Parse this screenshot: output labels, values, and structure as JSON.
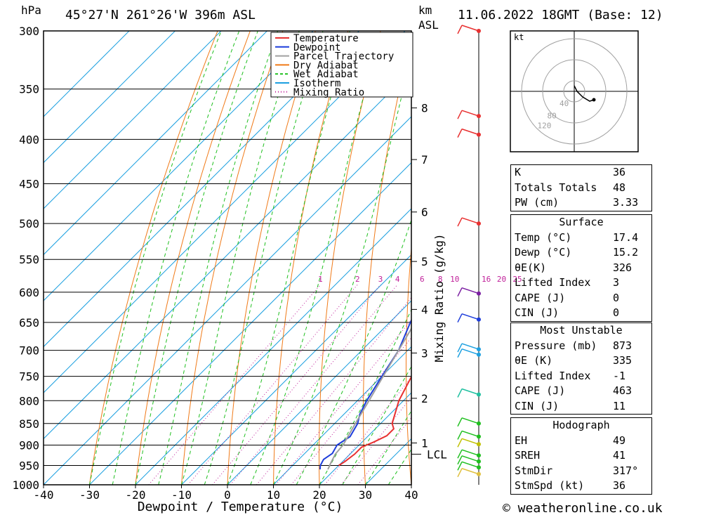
{
  "header": {
    "pressure_unit": "hPa",
    "location": "45°27'N 261°26'W 396m ASL",
    "height_unit": "km",
    "height_ref": "ASL",
    "datetime": "11.06.2022 18GMT (Base: 12)"
  },
  "footer": {
    "credit": "© weatheronline.co.uk"
  },
  "chart_data": {
    "type": "line",
    "title": "45°27'N 261°26'W 396m ASL",
    "xlabel": "Dewpoint / Temperature (°C)",
    "ylabel": "hPa",
    "y_scale": "log",
    "xlim": [
      -40,
      40
    ],
    "ylim": [
      1000,
      300
    ],
    "x_ticks": [
      -40,
      -30,
      -20,
      -10,
      0,
      10,
      20,
      30,
      40
    ],
    "x_tick_labels": [
      "-40",
      "-30",
      "-20",
      "-10",
      "0",
      "10",
      "20",
      "30",
      "40"
    ],
    "pressure_ticks": [
      300,
      350,
      400,
      450,
      500,
      550,
      600,
      650,
      700,
      750,
      800,
      850,
      900,
      950,
      1000
    ],
    "km_ticks": [
      {
        "label": "8",
        "p": 368
      },
      {
        "label": "7",
        "p": 422
      },
      {
        "label": "6",
        "p": 485
      },
      {
        "label": "5",
        "p": 553
      },
      {
        "label": "4",
        "p": 628
      },
      {
        "label": "3",
        "p": 705
      },
      {
        "label": "2",
        "p": 795
      },
      {
        "label": "1",
        "p": 895
      }
    ],
    "lcl": {
      "label": "LCL",
      "p": 922
    },
    "mixing_ratio_label": "Mixing Ratio (g/kg)",
    "mixing_ratio_values": [
      "1",
      "2",
      "3",
      "4",
      "6",
      "8",
      "10",
      "16",
      "20",
      "25"
    ],
    "mixing_ratio_label_p": 588,
    "legend": [
      {
        "name": "Temperature",
        "color": "#e83030",
        "style": "solid"
      },
      {
        "name": "Dewpoint",
        "color": "#1d3ddb",
        "style": "solid"
      },
      {
        "name": "Parcel Trajectory",
        "color": "#a0a0a0",
        "style": "solid"
      },
      {
        "name": "Dry Adiabat",
        "color": "#f07a18",
        "style": "solid"
      },
      {
        "name": "Wet Adiabat",
        "color": "#1fbf1f",
        "style": "dashed"
      },
      {
        "name": "Isotherm",
        "color": "#1da0e0",
        "style": "solid"
      },
      {
        "name": "Mixing Ratio",
        "color": "#c0209a",
        "style": "dotted"
      }
    ],
    "series": [
      {
        "name": "Temperature",
        "color": "#e83030",
        "points": [
          [
            950,
            20
          ],
          [
            940,
            20.5
          ],
          [
            922,
            21
          ],
          [
            905,
            21
          ],
          [
            893,
            22.5
          ],
          [
            878,
            24
          ],
          [
            862,
            24
          ],
          [
            850,
            22.5
          ],
          [
            800,
            19
          ],
          [
            750,
            16.5
          ],
          [
            700,
            13
          ],
          [
            650,
            10.5
          ],
          [
            600,
            7
          ],
          [
            550,
            3.5
          ],
          [
            500,
            -1
          ],
          [
            470,
            -4
          ],
          [
            450,
            -6
          ],
          [
            425,
            -9.5
          ],
          [
            400,
            -15.5
          ],
          [
            370,
            -21.5
          ],
          [
            350,
            -26.5
          ],
          [
            300,
            -36
          ]
        ]
      },
      {
        "name": "Dewpoint",
        "color": "#1d3ddb",
        "points": [
          [
            960,
            16.8
          ],
          [
            950,
            16
          ],
          [
            935,
            15.4
          ],
          [
            920,
            16
          ],
          [
            900,
            15.2
          ],
          [
            880,
            16.2
          ],
          [
            850,
            15
          ],
          [
            830,
            13.5
          ],
          [
            800,
            12
          ],
          [
            750,
            10
          ],
          [
            700,
            8
          ],
          [
            650,
            4.5
          ],
          [
            600,
            1
          ],
          [
            550,
            -4
          ],
          [
            500,
            -9.5
          ],
          [
            475,
            -12
          ],
          [
            455,
            -16
          ],
          [
            430,
            -22
          ],
          [
            400,
            -25
          ],
          [
            380,
            -28
          ],
          [
            350,
            -33
          ],
          [
            300,
            -46
          ]
        ]
      },
      {
        "name": "Parcel Trajectory",
        "color": "#a0a0a0",
        "points": [
          [
            960,
            18.5
          ],
          [
            945,
            17.8
          ],
          [
            922,
            16.8
          ],
          [
            900,
            16.5
          ],
          [
            850,
            14.5
          ],
          [
            800,
            12.5
          ],
          [
            750,
            10.3
          ],
          [
            700,
            8
          ],
          [
            650,
            5.5
          ],
          [
            600,
            2.5
          ],
          [
            550,
            -1
          ],
          [
            500,
            -5
          ],
          [
            450,
            -10
          ],
          [
            400,
            -17
          ],
          [
            350,
            -26
          ],
          [
            300,
            -38
          ]
        ]
      }
    ],
    "wind_barbs": [
      {
        "p": 300,
        "color": "#e83030"
      },
      {
        "p": 376,
        "color": "#e83030"
      },
      {
        "p": 395,
        "color": "#e83030"
      },
      {
        "p": 500,
        "color": "#e83030"
      },
      {
        "p": 602,
        "color": "#7b1fa2"
      },
      {
        "p": 645,
        "color": "#1d3ddb"
      },
      {
        "p": 698,
        "color": "#1da0e0"
      },
      {
        "p": 708,
        "color": "#1da0e0"
      },
      {
        "p": 787,
        "color": "#20c0a0"
      },
      {
        "p": 850,
        "color": "#1fbf1f"
      },
      {
        "p": 880,
        "color": "#1fbf1f"
      },
      {
        "p": 898,
        "color": "#c0c000"
      },
      {
        "p": 925,
        "color": "#1fbf1f"
      },
      {
        "p": 940,
        "color": "#1fbf1f"
      },
      {
        "p": 955,
        "color": "#1fbf1f"
      },
      {
        "p": 972,
        "color": "#e0c040"
      }
    ],
    "grid": true
  },
  "hodograph": {
    "unit": "kt",
    "ring_labels": [
      "40",
      "80",
      "120"
    ]
  },
  "indices_table": [
    {
      "key": "K",
      "value": "36"
    },
    {
      "key": "Totals Totals",
      "value": "48"
    },
    {
      "key": "PW (cm)",
      "value": "3.33"
    }
  ],
  "surface_table": {
    "title": "Surface",
    "rows": [
      {
        "key": "Temp (°C)",
        "value": "17.4"
      },
      {
        "key": "Dewp (°C)",
        "value": "15.2"
      },
      {
        "key": "θE(K)",
        "value": "326"
      },
      {
        "key": "Lifted Index",
        "value": "3"
      },
      {
        "key": "CAPE (J)",
        "value": "0"
      },
      {
        "key": "CIN (J)",
        "value": "0"
      }
    ]
  },
  "most_unstable_table": {
    "title": "Most Unstable",
    "rows": [
      {
        "key": "Pressure (mb)",
        "value": "873"
      },
      {
        "key": "θE (K)",
        "value": "335"
      },
      {
        "key": "Lifted Index",
        "value": "-1"
      },
      {
        "key": "CAPE (J)",
        "value": "463"
      },
      {
        "key": "CIN (J)",
        "value": "11"
      }
    ]
  },
  "hodograph_table": {
    "title": "Hodograph",
    "rows": [
      {
        "key": "EH",
        "value": "49"
      },
      {
        "key": "SREH",
        "value": "41"
      },
      {
        "key": "StmDir",
        "value": "317°"
      },
      {
        "key": "StmSpd (kt)",
        "value": "36"
      }
    ]
  }
}
